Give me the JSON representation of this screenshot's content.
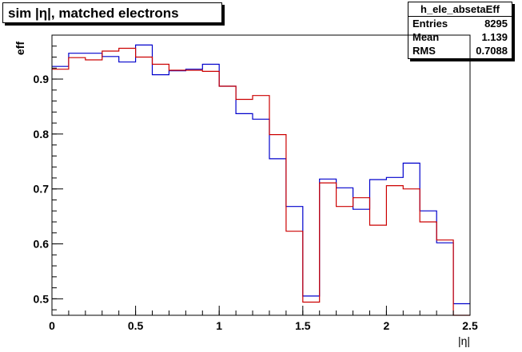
{
  "title": "sim |η|, matched electrons",
  "stats": {
    "name": "h_ele_absetaEff",
    "rows": [
      {
        "label": "Entries",
        "value": "8295"
      },
      {
        "label": "Mean",
        "value": "1.139"
      },
      {
        "label": "RMS",
        "value": "0.7088"
      }
    ]
  },
  "chart_data": {
    "type": "line",
    "xlabel": "|η|",
    "ylabel": "eff",
    "xlim": [
      0,
      2.5
    ],
    "ylim": [
      0.47,
      0.98
    ],
    "x_ticks": [
      0,
      0.5,
      1,
      1.5,
      2,
      2.5
    ],
    "x_tick_labels": [
      "0",
      "0.5",
      "1",
      "1.5",
      "2",
      "2.5"
    ],
    "y_ticks": [
      0.5,
      0.6,
      0.7,
      0.8,
      0.9
    ],
    "y_tick_labels": [
      "0.5",
      "0.6",
      "0.7",
      "0.8",
      "0.9"
    ],
    "bin_edges": [
      0,
      0.1,
      0.2,
      0.3,
      0.4,
      0.5,
      0.6,
      0.7,
      0.8,
      0.9,
      1.0,
      1.1,
      1.2,
      1.3,
      1.4,
      1.5,
      1.6,
      1.7,
      1.8,
      1.9,
      2.0,
      2.1,
      2.2,
      2.3,
      2.4,
      2.5
    ],
    "series": [
      {
        "color": "#0000cc",
        "values": [
          0.923,
          0.947,
          0.947,
          0.941,
          0.931,
          0.962,
          0.908,
          0.915,
          0.918,
          0.927,
          0.887,
          0.837,
          0.827,
          0.755,
          0.668,
          0.505,
          0.718,
          0.702,
          0.663,
          0.717,
          0.721,
          0.747,
          0.66,
          0.602,
          0.491
        ]
      },
      {
        "color": "#cc0000",
        "values": [
          0.918,
          0.939,
          0.935,
          0.951,
          0.956,
          0.94,
          0.927,
          0.916,
          0.916,
          0.914,
          0.887,
          0.863,
          0.87,
          0.799,
          0.623,
          0.494,
          0.711,
          0.668,
          0.684,
          0.634,
          0.706,
          0.7,
          0.64,
          0.607,
          0.47
        ]
      }
    ]
  }
}
